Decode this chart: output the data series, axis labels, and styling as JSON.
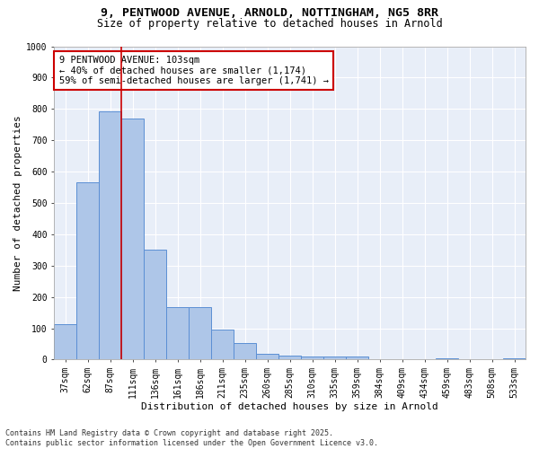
{
  "title_line1": "9, PENTWOOD AVENUE, ARNOLD, NOTTINGHAM, NG5 8RR",
  "title_line2": "Size of property relative to detached houses in Arnold",
  "xlabel": "Distribution of detached houses by size in Arnold",
  "ylabel": "Number of detached properties",
  "categories": [
    "37sqm",
    "62sqm",
    "87sqm",
    "111sqm",
    "136sqm",
    "161sqm",
    "186sqm",
    "211sqm",
    "235sqm",
    "260sqm",
    "285sqm",
    "310sqm",
    "335sqm",
    "359sqm",
    "384sqm",
    "409sqm",
    "434sqm",
    "459sqm",
    "483sqm",
    "508sqm",
    "533sqm"
  ],
  "values": [
    112,
    565,
    793,
    770,
    350,
    168,
    168,
    97,
    52,
    18,
    13,
    10,
    10,
    10,
    0,
    0,
    0,
    5,
    0,
    0,
    5
  ],
  "bar_color": "#aec6e8",
  "bar_edge_color": "#5b8fd4",
  "background_color": "#e8eef8",
  "grid_color": "#ffffff",
  "vline_color": "#cc0000",
  "vline_x_index": 2,
  "annotation_text": "9 PENTWOOD AVENUE: 103sqm\n← 40% of detached houses are smaller (1,174)\n59% of semi-detached houses are larger (1,741) →",
  "annotation_box_edgecolor": "#cc0000",
  "ylim": [
    0,
    1000
  ],
  "yticks": [
    0,
    100,
    200,
    300,
    400,
    500,
    600,
    700,
    800,
    900,
    1000
  ],
  "footer_text": "Contains HM Land Registry data © Crown copyright and database right 2025.\nContains public sector information licensed under the Open Government Licence v3.0.",
  "title_fontsize": 9.5,
  "subtitle_fontsize": 8.5,
  "axis_label_fontsize": 8,
  "tick_fontsize": 7,
  "annotation_fontsize": 7.5,
  "footer_fontsize": 6
}
